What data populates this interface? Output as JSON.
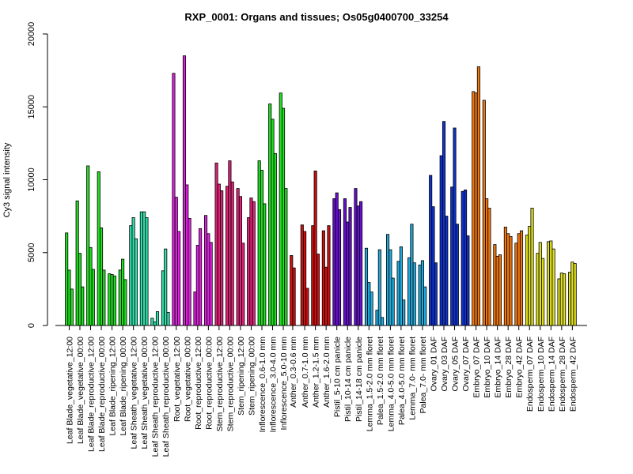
{
  "chart_data": {
    "type": "bar",
    "title": "RXP_0001: Organs and tissues; Os05g0400700_33254",
    "xlabel": "",
    "ylabel": "Cy3 signal intensity",
    "ylim": [
      0,
      20000
    ],
    "yticks": [
      0,
      5000,
      10000,
      15000,
      20000
    ],
    "grid": false,
    "legend": "none",
    "categories": [
      "Leaf Blade_vegetative_12:00",
      "Leaf Blade_vegetative_00:00",
      "Leaf Blade_reproductive_12:00",
      "Leaf Blade_reproductive_00:00",
      "Leaf Blade_ripening_12:00",
      "Leaf Blade_ripening_00:00",
      "Leaf Sheath_vegetative_12:00",
      "Leaf Sheath_vegetative_00:00",
      "Leaf Sheath_reproductive_12:00",
      "Leaf Sheath_reproductive_00:00",
      "Root_vegetative_12:00",
      "Root_vegetative_00:00",
      "Root_reproductive_12:00",
      "Root_reproductive_00:00",
      "Stem_reproductive_12:00",
      "Stem_reproductive_00:00",
      "Stem_ripening_12:00",
      "Stem_ripening_00:00",
      "Inflorescence_0.6-1.0 mm",
      "Inflorescence_3.0-4.0 mm",
      "Inflorescence_5.0-10 mm",
      "Anther_0.3-0.6 mm",
      "Anther_0.7-1.0 mm",
      "Anther_1.2-1.5 mm",
      "Anther_1.6-2.0 mm",
      "Pistil_5-10 cm panicle",
      "Pistil_10-14 cm panicle",
      "Pistil_14-18 cm panicle",
      "Lemma_1.5-2.0 mm floret",
      "Palea_1.5-2.0 mm floret",
      "Lemma_4.0-5.0 mm floret",
      "Palea_4.0-5.0 mm floret",
      "Lemma_7.0- mm floret",
      "Palea_7.0- mm floret",
      "Ovary_01 DAF",
      "Ovary_03 DAF",
      "Ovary_05 DAF",
      "Ovary_07 DAF",
      "Embryo_07 DAF",
      "Embryo_10 DAF",
      "Embryo_14 DAF",
      "Embryo_28 DAF",
      "Embryo_42 DAF",
      "Endosperm_07 DAF",
      "Endosperm_10 DAF",
      "Endosperm_14 DAF",
      "Endosperm_28 DAF",
      "Endosperm_42 DAF"
    ],
    "groups": [
      {
        "color": "#22dd22",
        "values": [
          6350,
          3800,
          2500
        ]
      },
      {
        "color": "#22dd22",
        "values": [
          8550,
          4950,
          2650
        ]
      },
      {
        "color": "#22dd22",
        "values": [
          10950,
          5350,
          3850
        ]
      },
      {
        "color": "#22dd22",
        "values": [
          10550,
          6700,
          3800
        ]
      },
      {
        "color": "#22dd22",
        "values": [
          3550,
          3500,
          3400
        ]
      },
      {
        "color": "#22dd22",
        "values": [
          3800,
          4550,
          3150
        ]
      },
      {
        "color": "#33ddaa",
        "values": [
          6850,
          7400,
          5950
        ]
      },
      {
        "color": "#33ddaa",
        "values": [
          7800,
          7800,
          7400
        ]
      },
      {
        "color": "#33ddaa",
        "values": [
          500,
          250,
          950
        ]
      },
      {
        "color": "#33ddaa",
        "values": [
          3750,
          5250,
          900
        ]
      },
      {
        "color": "#dd22dd",
        "values": [
          17300,
          8800,
          6450
        ]
      },
      {
        "color": "#dd22dd",
        "values": [
          18500,
          9650,
          7350
        ]
      },
      {
        "color": "#dd22dd",
        "values": [
          2300,
          5500,
          6650
        ]
      },
      {
        "color": "#dd22dd",
        "values": [
          7550,
          6300,
          5700
        ]
      },
      {
        "color": "#dd2277",
        "values": [
          11150,
          9700,
          9250
        ]
      },
      {
        "color": "#dd2277",
        "values": [
          9550,
          11300,
          9850
        ]
      },
      {
        "color": "#dd2277",
        "values": [
          9400,
          8850,
          5650
        ]
      },
      {
        "color": "#dd2277",
        "values": [
          7400,
          8750,
          8500
        ]
      },
      {
        "color": "#22dd22",
        "values": [
          11300,
          10650,
          8350
        ]
      },
      {
        "color": "#22dd22",
        "values": [
          15200,
          14150,
          11800
        ]
      },
      {
        "color": "#22dd22",
        "values": [
          15950,
          14900,
          9400
        ]
      },
      {
        "color": "#cc1111",
        "values": [
          4800,
          3950
        ]
      },
      {
        "color": "#cc1111",
        "values": [
          6900,
          6450,
          2550
        ]
      },
      {
        "color": "#cc1111",
        "values": [
          6850,
          10600,
          4900
        ]
      },
      {
        "color": "#cc1111",
        "values": [
          6500,
          4000,
          6850
        ]
      },
      {
        "color": "#6611cc",
        "values": [
          8700,
          9100,
          7950
        ]
      },
      {
        "color": "#6611cc",
        "values": [
          8700,
          7100,
          8100
        ]
      },
      {
        "color": "#6611cc",
        "values": [
          9400,
          8200,
          8500
        ]
      },
      {
        "color": "#22aadd",
        "values": [
          5300,
          2950,
          2300
        ]
      },
      {
        "color": "#22aadd",
        "values": [
          1050,
          5200,
          550
        ]
      },
      {
        "color": "#22aadd",
        "values": [
          6250,
          5200,
          3250
        ]
      },
      {
        "color": "#22aadd",
        "values": [
          4400,
          5400,
          1750
        ]
      },
      {
        "color": "#22aadd",
        "values": [
          4650,
          6950,
          4300
        ]
      },
      {
        "color": "#22aadd",
        "values": [
          4150,
          4450,
          2650
        ]
      },
      {
        "color": "#1133cc",
        "values": [
          10300,
          8150,
          4300
        ]
      },
      {
        "color": "#1133cc",
        "values": [
          11650,
          14000,
          7500
        ]
      },
      {
        "color": "#1133cc",
        "values": [
          9500,
          13550,
          6950
        ]
      },
      {
        "color": "#1133cc",
        "values": [
          9200,
          9300,
          6150
        ]
      },
      {
        "color": "#ee7711",
        "values": [
          16050,
          15950,
          17750
        ]
      },
      {
        "color": "#ee7711",
        "values": [
          15450,
          8700,
          8050
        ]
      },
      {
        "color": "#ee7711",
        "values": [
          5550,
          4750,
          4850
        ]
      },
      {
        "color": "#ee7711",
        "values": [
          6750,
          6300,
          6100
        ]
      },
      {
        "color": "#ee7711",
        "values": [
          5650,
          6300,
          6500
        ]
      },
      {
        "color": "#dddd22",
        "values": [
          6200,
          6800,
          8050
        ]
      },
      {
        "color": "#dddd22",
        "values": [
          4950,
          5700,
          4600
        ]
      },
      {
        "color": "#dddd22",
        "values": [
          5750,
          5800,
          5250
        ]
      },
      {
        "color": "#dddd22",
        "values": [
          3200,
          3600,
          3550
        ]
      },
      {
        "color": "#dddd22",
        "values": [
          3650,
          4350,
          4250
        ]
      }
    ]
  }
}
